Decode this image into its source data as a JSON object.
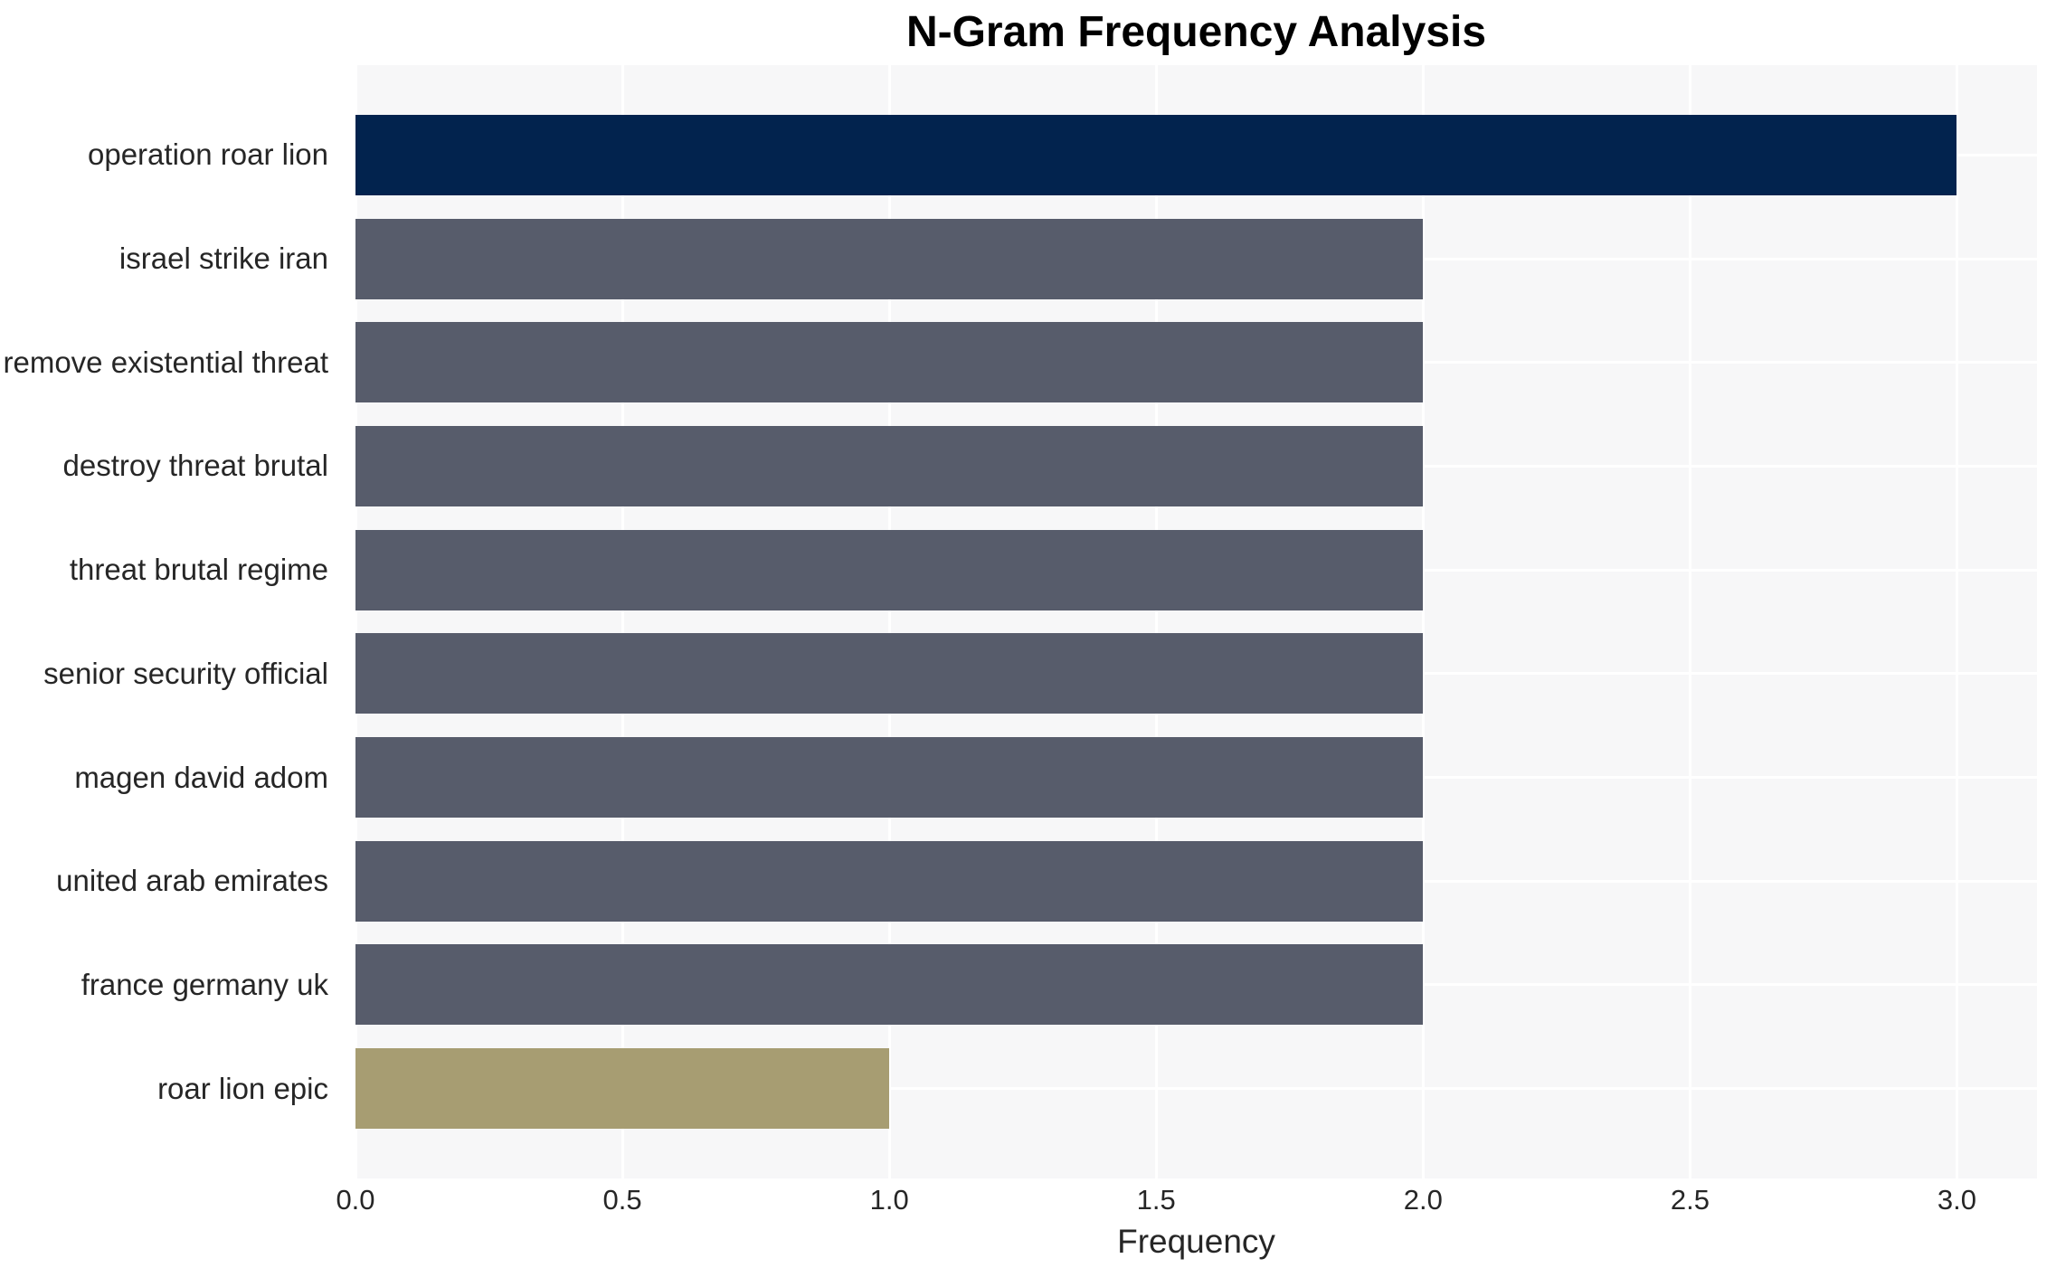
{
  "chart_data": {
    "type": "bar",
    "orientation": "horizontal",
    "title": "N-Gram Frequency Analysis",
    "xlabel": "Frequency",
    "ylabel": "",
    "categories": [
      "operation roar lion",
      "israel strike iran",
      "remove existential threat",
      "destroy threat brutal",
      "threat brutal regime",
      "senior security official",
      "magen david adom",
      "united arab emirates",
      "france germany uk",
      "roar lion epic"
    ],
    "values": [
      3,
      2,
      2,
      2,
      2,
      2,
      2,
      2,
      2,
      1
    ],
    "bar_colors": [
      "#02234e",
      "#575c6b",
      "#575c6b",
      "#575c6b",
      "#575c6b",
      "#575c6b",
      "#575c6b",
      "#575c6b",
      "#575c6b",
      "#a79d72"
    ],
    "xlim": [
      0,
      3.15
    ],
    "xticks": [
      0,
      0.5,
      1,
      1.5,
      2,
      2.5,
      3
    ],
    "xtick_labels": [
      "0.0",
      "0.5",
      "1.0",
      "1.5",
      "2.0",
      "2.5",
      "3.0"
    ],
    "grid": true,
    "legend": false,
    "colors": {
      "highlight_max": "#02234e",
      "default_bar": "#575c6b",
      "highlight_min": "#a79d72",
      "plot_background": "#f7f7f8",
      "grid_color": "#ffffff",
      "text_color": "#262626",
      "title_color": "#000000",
      "figure_background": "#ffffff"
    }
  }
}
